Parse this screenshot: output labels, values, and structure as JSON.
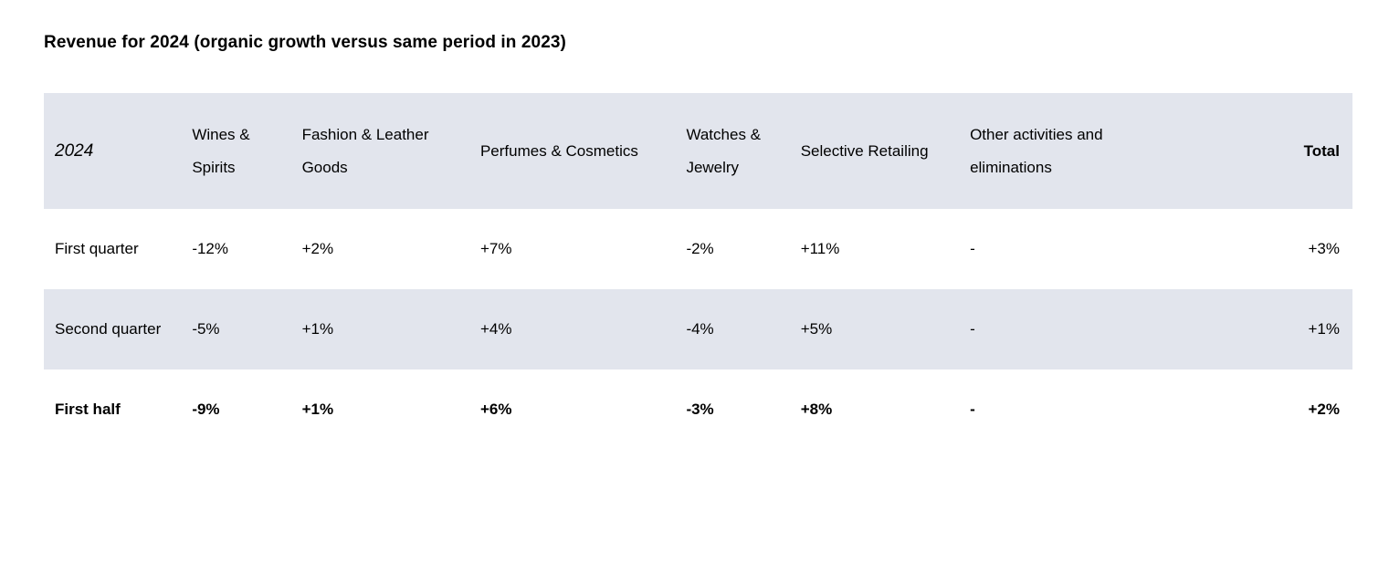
{
  "title": "Revenue for 2024 (organic growth versus same period in 2023)",
  "table": {
    "yearLabel": "2024",
    "columns": [
      "Wines & Spirits",
      "Fashion & Leather Goods",
      "Perfumes & Cosmetics",
      "Watches & Jewelry",
      "Selective Retailing",
      "Other activities and eliminations"
    ],
    "totalLabel": "Total",
    "columnWidths": [
      "150px",
      "120px",
      "195px",
      "225px",
      "125px",
      "185px",
      "240px",
      "190px"
    ],
    "rows": [
      {
        "label": "First quarter",
        "cells": [
          "-12%",
          "+2%",
          "+7%",
          "-2%",
          "+11%",
          "-"
        ],
        "total": "+3%",
        "bold": false,
        "stripe": false
      },
      {
        "label": "Second quarter",
        "cells": [
          "-5%",
          "+1%",
          "+4%",
          "-4%",
          "+5%",
          "-"
        ],
        "total": "+1%",
        "bold": false,
        "stripe": true
      },
      {
        "label": "First half",
        "cells": [
          "-9%",
          "+1%",
          "+6%",
          "-3%",
          "+8%",
          "-"
        ],
        "total": "+2%",
        "bold": true,
        "stripe": false
      }
    ]
  },
  "style": {
    "headerBg": "#e2e5ed",
    "stripeBg": "#e2e5ed",
    "pageBg": "#ffffff",
    "textColor": "#000000",
    "titleFontSize": 19,
    "bodyFontSize": 17
  }
}
